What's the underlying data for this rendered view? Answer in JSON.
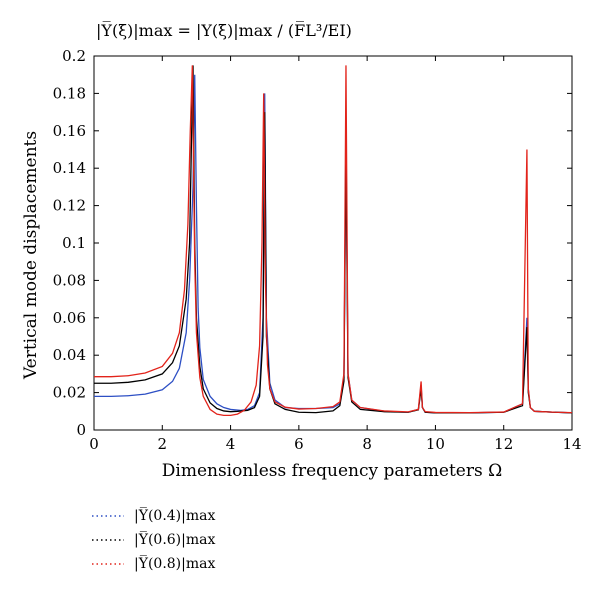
{
  "chart_data": {
    "type": "line",
    "title": "|Y̅(ξ)|max = |Y(ξ)|max / (F̅L³/EI)",
    "xlabel": "Dimensionless frequency parameters Ω",
    "ylabel": "Vertical mode displacements",
    "xlim": [
      0,
      14
    ],
    "ylim": [
      0,
      0.2
    ],
    "xticks": [
      "0",
      "2",
      "4",
      "6",
      "8",
      "10",
      "12",
      "14"
    ],
    "yticks": [
      "0",
      "0.02",
      "0.04",
      "0.06",
      "0.08",
      "0.1",
      "0.12",
      "0.14",
      "0.16",
      "0.18",
      "0.2"
    ],
    "legend_position": "below",
    "series": [
      {
        "name": "|Y̅(0.4)|max",
        "color": "#2d4fc4",
        "x": [
          0,
          0.5,
          1,
          1.5,
          2,
          2.3,
          2.5,
          2.7,
          2.8,
          2.9,
          2.95,
          3.0,
          3.05,
          3.1,
          3.2,
          3.4,
          3.6,
          3.8,
          4.0,
          4.3,
          4.5,
          4.7,
          4.85,
          4.95,
          5.0,
          5.05,
          5.15,
          5.3,
          5.6,
          6,
          6.5,
          7,
          7.2,
          7.32,
          7.38,
          7.44,
          7.55,
          7.8,
          8.5,
          9.2,
          9.5,
          9.58,
          9.62,
          9.7,
          10,
          11,
          12,
          12.55,
          12.68,
          12.72,
          12.78,
          12.9,
          13.5,
          14
        ],
        "values": [
          0.018,
          0.018,
          0.0183,
          0.0192,
          0.0215,
          0.026,
          0.033,
          0.052,
          0.08,
          0.13,
          0.19,
          0.12,
          0.065,
          0.044,
          0.027,
          0.018,
          0.014,
          0.012,
          0.011,
          0.0105,
          0.011,
          0.013,
          0.02,
          0.06,
          0.18,
          0.06,
          0.025,
          0.016,
          0.012,
          0.0115,
          0.0115,
          0.012,
          0.014,
          0.028,
          0.16,
          0.03,
          0.016,
          0.012,
          0.01,
          0.0095,
          0.011,
          0.024,
          0.012,
          0.0095,
          0.0092,
          0.0092,
          0.0095,
          0.014,
          0.06,
          0.022,
          0.012,
          0.01,
          0.0095,
          0.0092
        ]
      },
      {
        "name": "|Y̅(0.6)|max",
        "color": "#000000",
        "x": [
          0,
          0.5,
          1,
          1.5,
          2,
          2.3,
          2.5,
          2.7,
          2.8,
          2.85,
          2.9,
          2.95,
          3.0,
          3.1,
          3.2,
          3.4,
          3.6,
          3.8,
          4.0,
          4.2,
          4.5,
          4.7,
          4.85,
          4.95,
          5.0,
          5.05,
          5.15,
          5.3,
          5.6,
          6,
          6.5,
          7,
          7.2,
          7.32,
          7.38,
          7.44,
          7.55,
          7.8,
          8.5,
          9.2,
          9.5,
          9.58,
          9.62,
          9.7,
          10,
          11,
          12,
          12.55,
          12.68,
          12.72,
          12.78,
          12.9,
          13.5,
          14
        ],
        "values": [
          0.025,
          0.025,
          0.0255,
          0.0268,
          0.03,
          0.036,
          0.045,
          0.07,
          0.1,
          0.15,
          0.195,
          0.1,
          0.06,
          0.034,
          0.022,
          0.0145,
          0.0115,
          0.0102,
          0.0098,
          0.01,
          0.0105,
          0.012,
          0.018,
          0.05,
          0.17,
          0.05,
          0.022,
          0.014,
          0.011,
          0.0095,
          0.0093,
          0.0102,
          0.013,
          0.026,
          0.15,
          0.028,
          0.015,
          0.011,
          0.0098,
          0.0095,
          0.0108,
          0.022,
          0.012,
          0.0095,
          0.0092,
          0.0092,
          0.0095,
          0.013,
          0.055,
          0.02,
          0.012,
          0.01,
          0.0095,
          0.0092
        ]
      },
      {
        "name": "|Y̅(0.8)|max",
        "color": "#e2231a",
        "x": [
          0,
          0.5,
          1,
          1.5,
          2,
          2.3,
          2.5,
          2.65,
          2.75,
          2.82,
          2.88,
          2.95,
          3.0,
          3.1,
          3.2,
          3.4,
          3.6,
          3.8,
          4.0,
          4.2,
          4.4,
          4.6,
          4.75,
          4.85,
          4.92,
          4.97,
          5.02,
          5.08,
          5.15,
          5.3,
          5.6,
          6,
          6.5,
          7,
          7.2,
          7.32,
          7.38,
          7.44,
          7.55,
          7.8,
          8.5,
          9.2,
          9.5,
          9.58,
          9.62,
          9.7,
          10,
          11,
          12,
          12.55,
          12.68,
          12.72,
          12.78,
          12.9,
          13.5,
          14
        ],
        "values": [
          0.0285,
          0.0285,
          0.029,
          0.0305,
          0.034,
          0.041,
          0.052,
          0.075,
          0.11,
          0.16,
          0.195,
          0.09,
          0.052,
          0.028,
          0.018,
          0.011,
          0.0085,
          0.0078,
          0.0078,
          0.0085,
          0.0105,
          0.015,
          0.024,
          0.045,
          0.1,
          0.18,
          0.08,
          0.035,
          0.022,
          0.015,
          0.0122,
          0.0112,
          0.0115,
          0.0125,
          0.015,
          0.03,
          0.195,
          0.03,
          0.016,
          0.012,
          0.0102,
          0.0097,
          0.011,
          0.026,
          0.012,
          0.0098,
          0.0094,
          0.0093,
          0.0096,
          0.014,
          0.15,
          0.022,
          0.012,
          0.01,
          0.0095,
          0.0093
        ]
      }
    ]
  }
}
